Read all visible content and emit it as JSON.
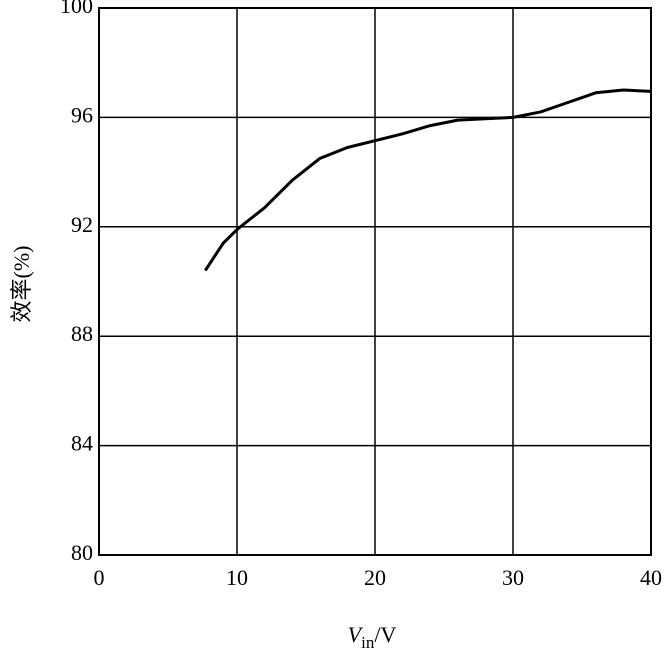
{
  "chart_data": {
    "type": "line",
    "ylabel": "效率(%)",
    "xlabel": [
      "V",
      "in",
      "/V"
    ],
    "x": [
      7.7,
      9,
      10,
      12,
      14,
      16,
      18,
      20,
      22,
      24,
      26,
      28,
      30,
      32,
      34,
      36,
      38,
      40
    ],
    "series": [
      {
        "color": "#000000",
        "values": [
          90.4,
          91.4,
          91.9,
          92.7,
          93.7,
          94.5,
          94.9,
          95.15,
          95.4,
          95.7,
          95.9,
          95.95,
          96.0,
          96.2,
          96.55,
          96.9,
          97.0,
          96.95
        ]
      }
    ],
    "xlim": [
      0,
      40
    ],
    "xticks": [
      0,
      10,
      20,
      30,
      40
    ],
    "ylim": [
      80,
      100
    ],
    "yticks": [
      80,
      84,
      88,
      92,
      96,
      100
    ],
    "grid": true
  }
}
